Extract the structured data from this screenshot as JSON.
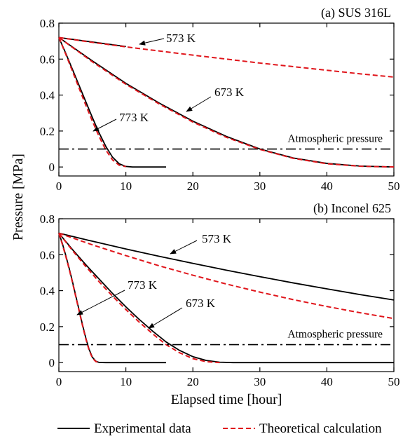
{
  "figure": {
    "xlabel": "Elapsed time [hour]",
    "ylabel": "Pressure [MPa]"
  },
  "legend": [
    {
      "label": "Experimental data",
      "style": "solid",
      "color": "#000000"
    },
    {
      "label": "Theoretical calculation",
      "style": "dashed",
      "color": "#e0151b"
    }
  ],
  "chart_data": [
    {
      "type": "line",
      "title": "(a) SUS 316L",
      "xlabel": "Elapsed time [hour]",
      "ylabel": "Pressure [MPa]",
      "xlim": [
        0,
        50
      ],
      "ylim": [
        -0.05,
        0.8
      ],
      "xticks": [
        0,
        10,
        20,
        30,
        40,
        50
      ],
      "yticks": [
        0,
        0.2,
        0.4,
        0.6,
        0.8
      ],
      "grid": false,
      "legend_position": "bottom",
      "reference_line": {
        "label": "Atmospheric pressure",
        "y": 0.1,
        "style": "dash-dot"
      },
      "annotations": [
        {
          "text": "573 K",
          "series_temp": "573 K"
        },
        {
          "text": "673 K",
          "series_temp": "673 K"
        },
        {
          "text": "773 K",
          "series_temp": "773 K"
        }
      ],
      "series": [
        {
          "group": "773 K",
          "kind": "Experimental data",
          "x": [
            0,
            1,
            2,
            3,
            4,
            5,
            6,
            7,
            8,
            9,
            10,
            11,
            12,
            14,
            16
          ],
          "y": [
            0.72,
            0.635,
            0.545,
            0.455,
            0.365,
            0.275,
            0.19,
            0.115,
            0.055,
            0.018,
            0.003,
            0,
            0,
            0,
            0
          ]
        },
        {
          "group": "773 K",
          "kind": "Theoretical calculation",
          "x": [
            0,
            1,
            2,
            3,
            4,
            5,
            6,
            7,
            8,
            9,
            10
          ],
          "y": [
            0.72,
            0.63,
            0.535,
            0.44,
            0.345,
            0.255,
            0.17,
            0.095,
            0.04,
            0.01,
            0.002
          ]
        },
        {
          "group": "673 K",
          "kind": "Experimental data",
          "x": [
            0,
            5,
            10,
            15,
            20,
            25,
            30,
            35,
            40,
            45,
            50
          ],
          "y": [
            0.72,
            0.59,
            0.465,
            0.355,
            0.255,
            0.17,
            0.1,
            0.05,
            0.02,
            0.005,
            0
          ]
        },
        {
          "group": "673 K",
          "kind": "Theoretical calculation",
          "x": [
            0,
            5,
            10,
            15,
            20,
            25,
            30,
            35,
            40,
            45,
            50
          ],
          "y": [
            0.72,
            0.585,
            0.46,
            0.35,
            0.25,
            0.165,
            0.098,
            0.048,
            0.018,
            0.004,
            0
          ]
        },
        {
          "group": "573 K",
          "kind": "Experimental data",
          "x": [
            0,
            5,
            10
          ],
          "y": [
            0.72,
            0.695,
            0.67
          ]
        },
        {
          "group": "573 K",
          "kind": "Theoretical calculation",
          "x": [
            0,
            5,
            10,
            15,
            20,
            25,
            30,
            35,
            40,
            45,
            50
          ],
          "y": [
            0.72,
            0.693,
            0.668,
            0.645,
            0.622,
            0.6,
            0.578,
            0.558,
            0.538,
            0.518,
            0.5
          ]
        }
      ]
    },
    {
      "type": "line",
      "title": "(b) Inconel 625",
      "xlabel": "Elapsed time [hour]",
      "ylabel": "Pressure [MPa]",
      "xlim": [
        0,
        50
      ],
      "ylim": [
        -0.05,
        0.8
      ],
      "xticks": [
        0,
        10,
        20,
        30,
        40,
        50
      ],
      "yticks": [
        0,
        0.2,
        0.4,
        0.6,
        0.8
      ],
      "grid": false,
      "legend_position": "bottom",
      "reference_line": {
        "label": "Atmospheric pressure",
        "y": 0.1,
        "style": "dash-dot"
      },
      "annotations": [
        {
          "text": "573 K",
          "series_temp": "573 K"
        },
        {
          "text": "673 K",
          "series_temp": "673 K"
        },
        {
          "text": "773 K",
          "series_temp": "773 K"
        }
      ],
      "series": [
        {
          "group": "773 K",
          "kind": "Experimental data",
          "x": [
            0,
            0.5,
            1,
            1.5,
            2,
            2.5,
            3,
            3.5,
            4,
            4.5,
            5,
            5.5,
            6,
            7,
            10,
            16
          ],
          "y": [
            0.72,
            0.665,
            0.6,
            0.53,
            0.455,
            0.375,
            0.295,
            0.215,
            0.14,
            0.075,
            0.03,
            0.008,
            0.001,
            0,
            0,
            0
          ]
        },
        {
          "group": "773 K",
          "kind": "Theoretical calculation",
          "x": [
            0,
            0.5,
            1,
            1.5,
            2,
            2.5,
            3,
            3.5,
            4,
            4.5,
            5,
            5.5,
            6
          ],
          "y": [
            0.72,
            0.66,
            0.595,
            0.525,
            0.45,
            0.37,
            0.29,
            0.21,
            0.135,
            0.07,
            0.026,
            0.006,
            0.001
          ]
        },
        {
          "group": "673 K",
          "kind": "Experimental data",
          "x": [
            0,
            2,
            4,
            6,
            8,
            10,
            12,
            14,
            16,
            18,
            20,
            22,
            24,
            26,
            30,
            40,
            50
          ],
          "y": [
            0.72,
            0.63,
            0.545,
            0.465,
            0.385,
            0.31,
            0.24,
            0.175,
            0.115,
            0.068,
            0.033,
            0.012,
            0.002,
            0,
            0,
            0,
            0
          ]
        },
        {
          "group": "673 K",
          "kind": "Theoretical calculation",
          "x": [
            0,
            2,
            4,
            6,
            8,
            10,
            12,
            14,
            16,
            18,
            20,
            22,
            24
          ],
          "y": [
            0.72,
            0.625,
            0.535,
            0.45,
            0.37,
            0.295,
            0.225,
            0.16,
            0.1,
            0.055,
            0.022,
            0.005,
            0
          ]
        },
        {
          "group": "573 K",
          "kind": "Experimental data",
          "x": [
            0,
            5,
            10,
            15,
            20,
            25,
            30,
            35,
            40,
            45,
            50
          ],
          "y": [
            0.72,
            0.675,
            0.632,
            0.591,
            0.552,
            0.514,
            0.478,
            0.443,
            0.41,
            0.378,
            0.348
          ]
        },
        {
          "group": "573 K",
          "kind": "Theoretical calculation",
          "x": [
            0,
            5,
            10,
            15,
            20,
            25,
            30,
            35,
            40,
            45,
            50
          ],
          "y": [
            0.72,
            0.655,
            0.595,
            0.538,
            0.486,
            0.437,
            0.392,
            0.35,
            0.312,
            0.277,
            0.245
          ]
        }
      ]
    }
  ]
}
